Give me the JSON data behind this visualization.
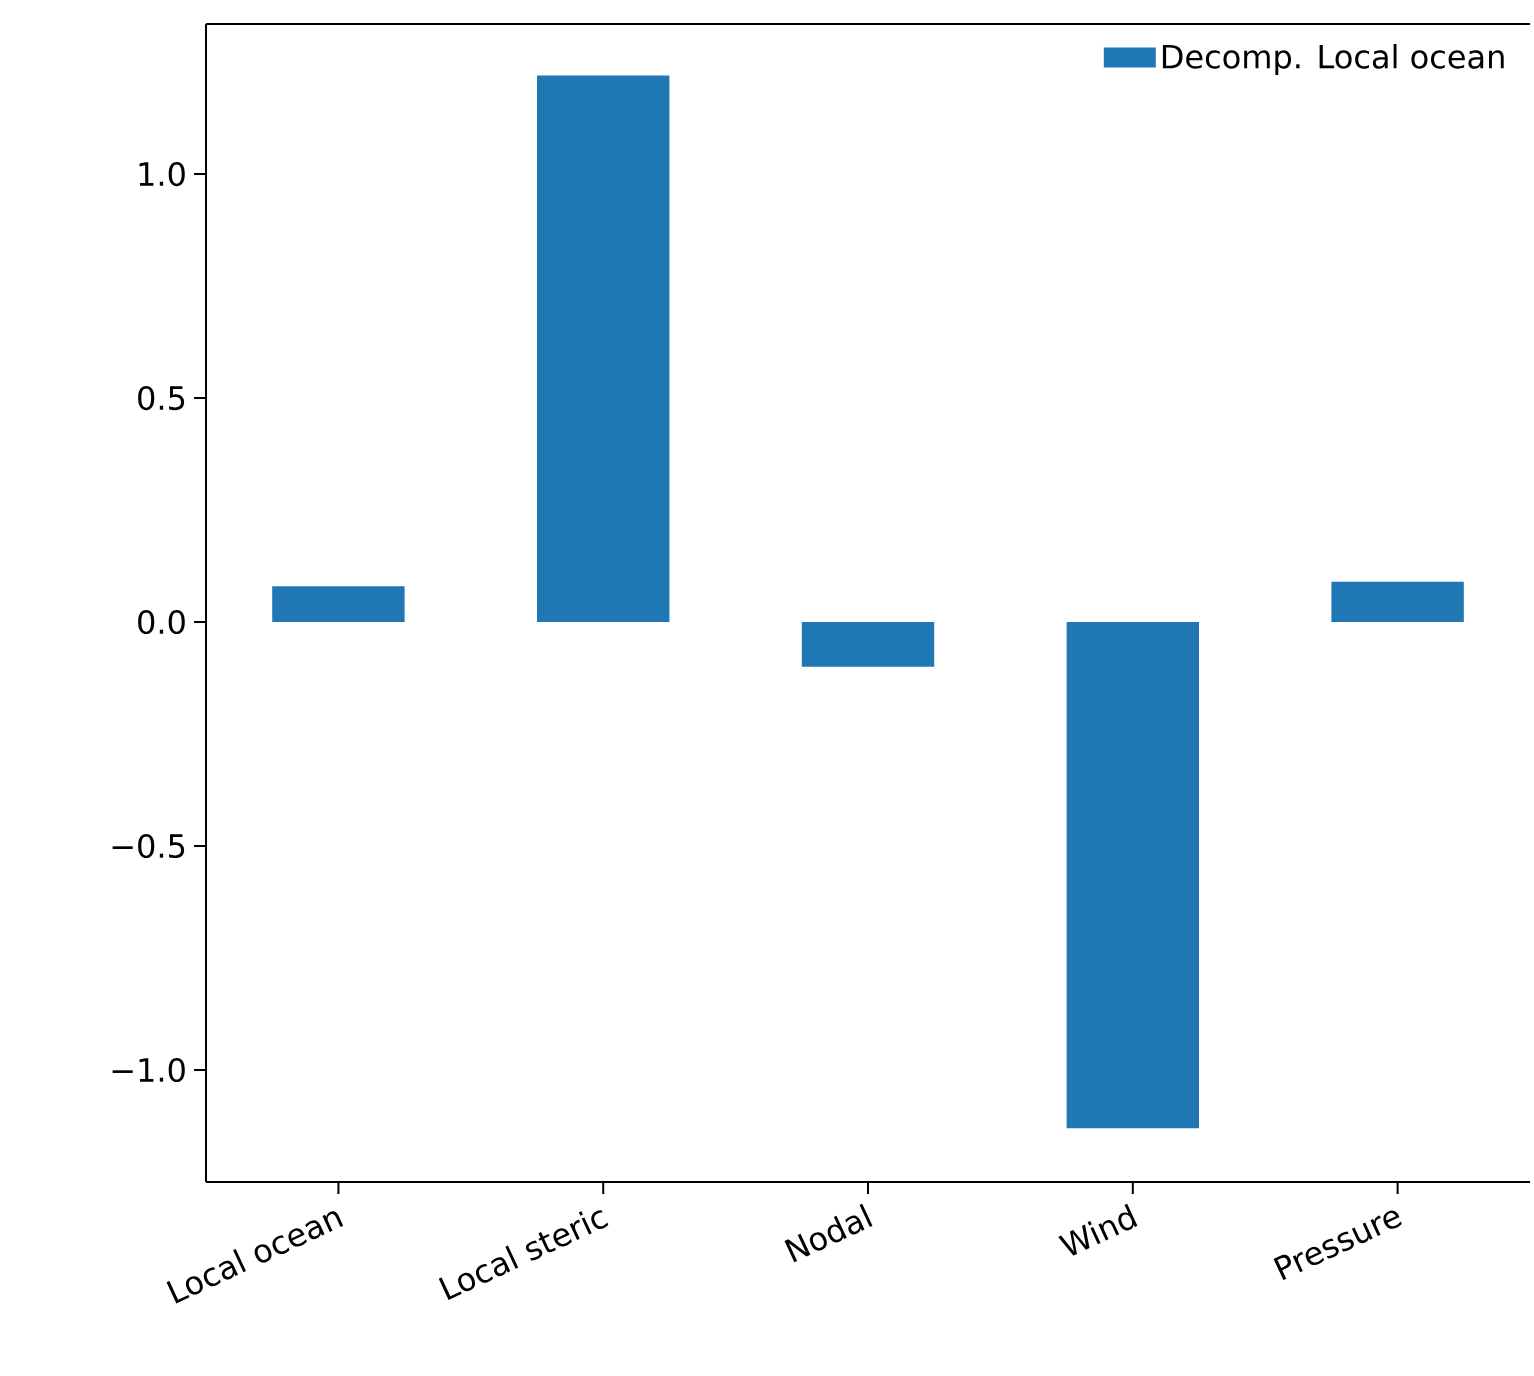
{
  "chart_data": {
    "type": "bar",
    "categories": [
      "Local ocean",
      "Local steric",
      "Nodal",
      "Wind",
      "Pressure"
    ],
    "series": [
      {
        "name": "Decomp. Local ocean",
        "color": "#1f77b4",
        "values": [
          0.08,
          1.22,
          -0.1,
          -1.13,
          0.09
        ]
      }
    ],
    "ylim": [
      -1.25,
      1.335
    ],
    "yticks": [
      {
        "value": -1.0,
        "label": "−1.0"
      },
      {
        "value": -0.5,
        "label": "−0.5"
      },
      {
        "value": 0.0,
        "label": "0.0"
      },
      {
        "value": 0.5,
        "label": "0.5"
      },
      {
        "value": 1.0,
        "label": "1.0"
      }
    ],
    "legend": "top right",
    "grid": false
  }
}
